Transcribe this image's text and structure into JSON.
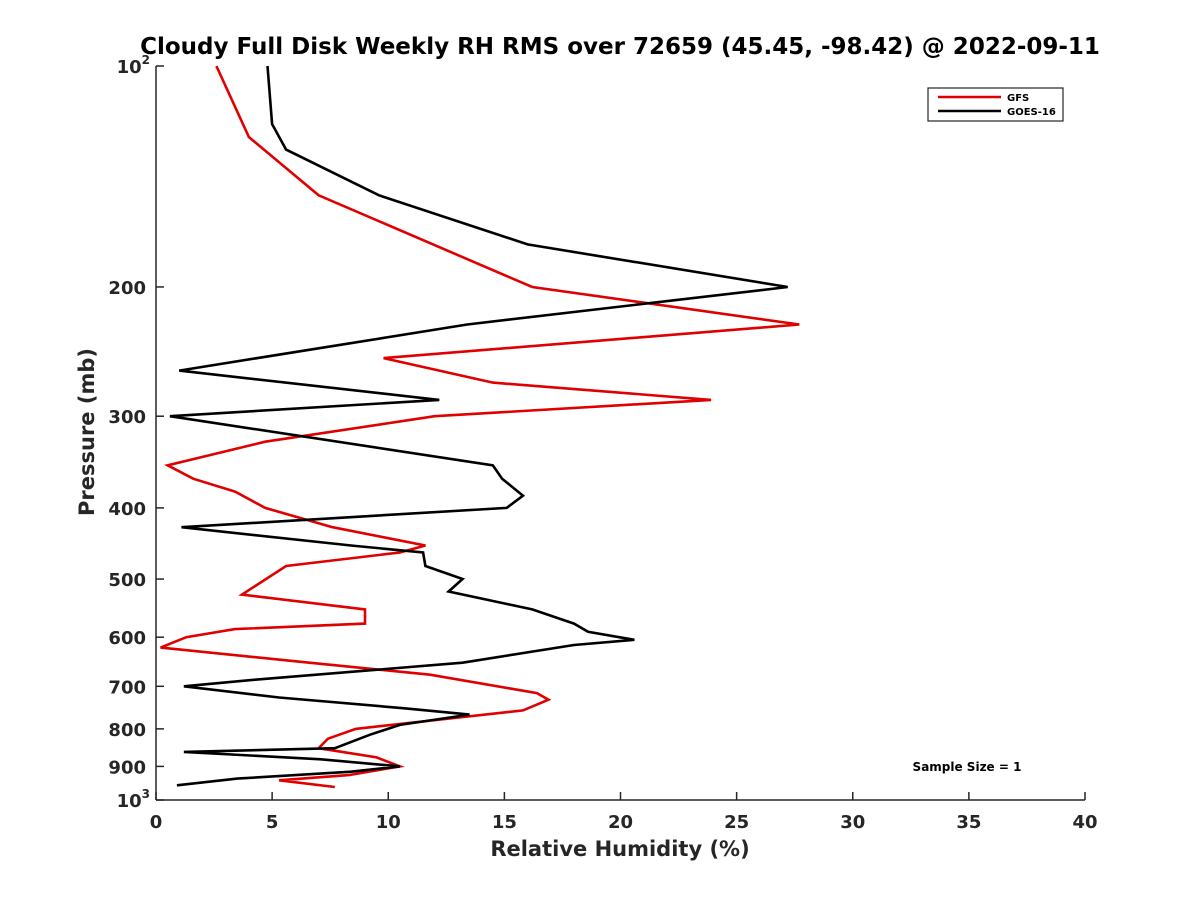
{
  "chart_data": {
    "type": "line",
    "title": "Cloudy Full Disk Weekly RH RMS over 72659 (45.45, -98.42) @ 2022-09-11",
    "xlabel": "Relative Humidity (%)",
    "ylabel": "Pressure (mb)",
    "xlim": [
      0,
      40
    ],
    "ylim": [
      100,
      1000
    ],
    "y_scale": "log",
    "y_reversed": true,
    "grid": false,
    "legend_position": "top-right",
    "x_ticks": [
      "0",
      "5",
      "10",
      "15",
      "20",
      "25",
      "30",
      "35",
      "40"
    ],
    "y_ticks": [
      {
        "value": 100,
        "base": "10",
        "exp": "2"
      },
      {
        "value": 200,
        "label": "200"
      },
      {
        "value": 300,
        "label": "300"
      },
      {
        "value": 400,
        "label": "400"
      },
      {
        "value": 500,
        "label": "500"
      },
      {
        "value": 600,
        "label": "600"
      },
      {
        "value": 700,
        "label": "700"
      },
      {
        "value": 800,
        "label": "800"
      },
      {
        "value": 900,
        "label": "900"
      },
      {
        "value": 1000,
        "base": "10",
        "exp": "3"
      }
    ],
    "series": [
      {
        "name": "GFS",
        "color": "#e00000",
        "points": [
          [
            2.6,
            100
          ],
          [
            4.0,
            125
          ],
          [
            7.0,
            150
          ],
          [
            16.2,
            200
          ],
          [
            27.7,
            225
          ],
          [
            9.8,
            250
          ],
          [
            14.5,
            270
          ],
          [
            23.9,
            285
          ],
          [
            12.0,
            300
          ],
          [
            4.7,
            325
          ],
          [
            0.5,
            350
          ],
          [
            1.6,
            365
          ],
          [
            3.4,
            380
          ],
          [
            4.7,
            400
          ],
          [
            7.6,
            425
          ],
          [
            11.6,
            450
          ],
          [
            10.5,
            460
          ],
          [
            5.6,
            480
          ],
          [
            3.7,
            525
          ],
          [
            9.0,
            550
          ],
          [
            9.0,
            575
          ],
          [
            3.4,
            585
          ],
          [
            1.3,
            600
          ],
          [
            0.2,
            620
          ],
          [
            6.6,
            650
          ],
          [
            11.8,
            675
          ],
          [
            16.4,
            715
          ],
          [
            16.9,
            730
          ],
          [
            15.8,
            755
          ],
          [
            8.6,
            800
          ],
          [
            7.4,
            825
          ],
          [
            7.0,
            850
          ],
          [
            9.5,
            875
          ],
          [
            10.5,
            900
          ],
          [
            8.3,
            925
          ],
          [
            5.3,
            940
          ],
          [
            7.7,
            960
          ]
        ]
      },
      {
        "name": "GOES-16",
        "color": "#000000",
        "points": [
          [
            4.8,
            100
          ],
          [
            5.0,
            120
          ],
          [
            5.6,
            130
          ],
          [
            9.6,
            150
          ],
          [
            16.0,
            175
          ],
          [
            27.2,
            200
          ],
          [
            13.4,
            225
          ],
          [
            1.0,
            260
          ],
          [
            12.2,
            285
          ],
          [
            0.6,
            300
          ],
          [
            14.5,
            350
          ],
          [
            14.9,
            365
          ],
          [
            15.8,
            385
          ],
          [
            15.1,
            400
          ],
          [
            1.1,
            425
          ],
          [
            8.4,
            450
          ],
          [
            11.5,
            460
          ],
          [
            11.6,
            480
          ],
          [
            13.2,
            500
          ],
          [
            12.6,
            520
          ],
          [
            16.2,
            550
          ],
          [
            18.0,
            575
          ],
          [
            18.6,
            590
          ],
          [
            20.6,
            605
          ],
          [
            18.0,
            615
          ],
          [
            13.2,
            650
          ],
          [
            4.4,
            685
          ],
          [
            1.2,
            700
          ],
          [
            5.3,
            725
          ],
          [
            10.7,
            750
          ],
          [
            13.5,
            765
          ],
          [
            10.5,
            790
          ],
          [
            9.2,
            815
          ],
          [
            7.7,
            850
          ],
          [
            1.2,
            860
          ],
          [
            7.1,
            880
          ],
          [
            10.5,
            900
          ],
          [
            8.4,
            915
          ],
          [
            3.5,
            935
          ],
          [
            0.9,
            955
          ]
        ]
      }
    ],
    "annotations": [
      "Sample Size = 1"
    ]
  }
}
